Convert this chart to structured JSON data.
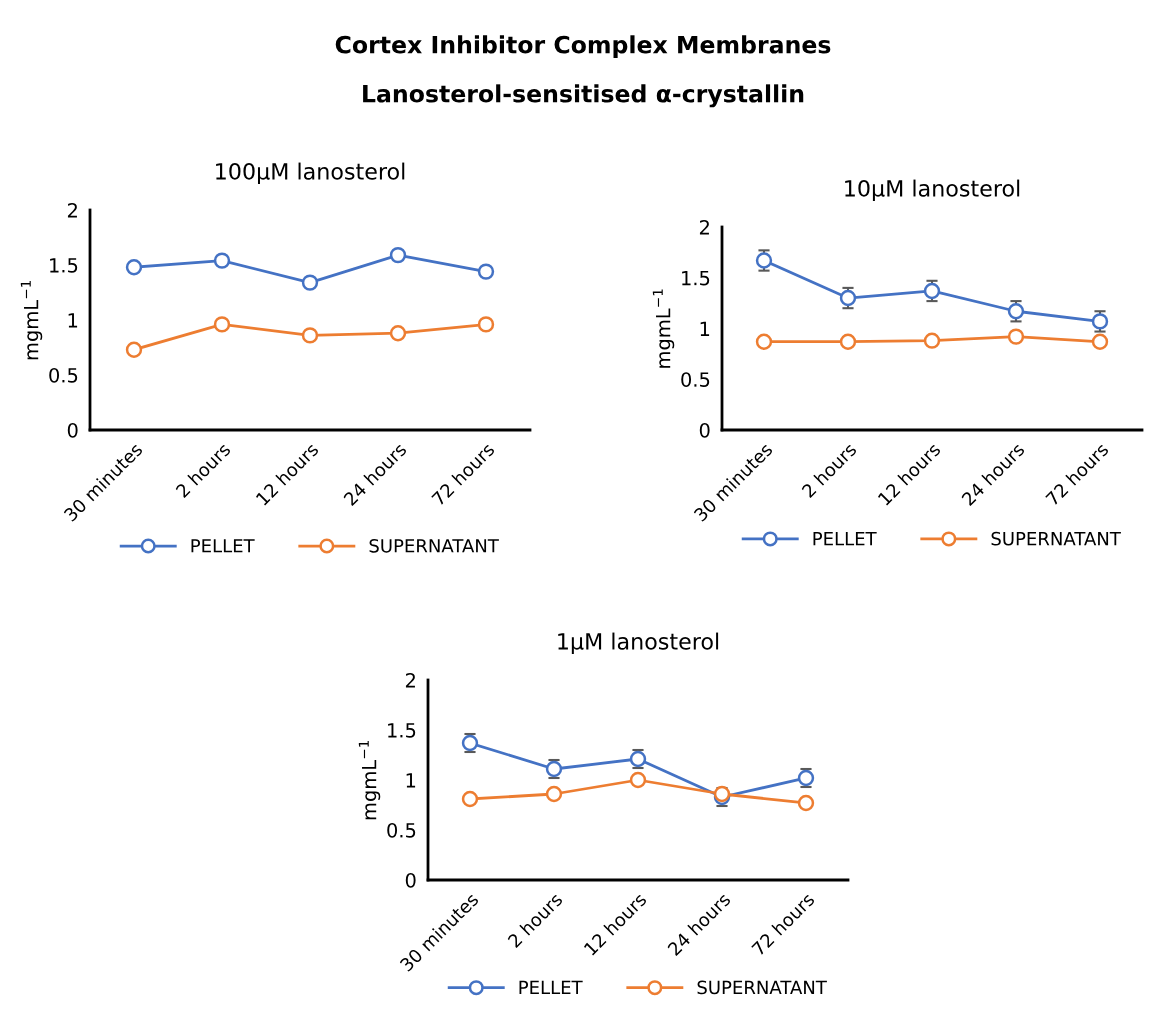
{
  "chart_data": [
    {
      "type": "other",
      "title": "Cortex Inhibitor Complex Membranes",
      "subtitle": "Lanosterol-sensitised α-crystallin"
    },
    {
      "type": "line",
      "title": "100µM lanosterol",
      "ylabel": "mgmL$^{−1}$",
      "categories": [
        "30 minutes",
        "2 hours",
        "12 hours",
        "24 hours",
        "72 hours"
      ],
      "ylim": [
        0,
        2
      ],
      "yticks": [
        0,
        0.5,
        1,
        1.5,
        2
      ],
      "grid": false,
      "legend": "bottom",
      "marker": "circle",
      "series": [
        {
          "name": "PELLET",
          "color": "#4472c4",
          "values": [
            1.48,
            1.54,
            1.34,
            1.59,
            1.44
          ]
        },
        {
          "name": "SUPERNATANT",
          "color": "#ed7d31",
          "values": [
            0.73,
            0.96,
            0.86,
            0.88,
            0.96
          ]
        }
      ]
    },
    {
      "type": "line",
      "title": "10µM lanosterol",
      "ylabel": "mgmL$^{−1}$",
      "categories": [
        "30 minutes",
        "2 hours",
        "12 hours",
        "24 hours",
        "72 hours"
      ],
      "ylim": [
        0,
        2
      ],
      "yticks": [
        0,
        0.5,
        1,
        1.5,
        2
      ],
      "grid": false,
      "legend": "bottom",
      "marker": "circle",
      "series": [
        {
          "name": "PELLET",
          "color": "#4472c4",
          "values": [
            1.67,
            1.3,
            1.37,
            1.17,
            1.07
          ],
          "errors": [
            0.1,
            0.1,
            0.1,
            0.1,
            0.1
          ]
        },
        {
          "name": "SUPERNATANT",
          "color": "#ed7d31",
          "values": [
            0.87,
            0.87,
            0.88,
            0.92,
            0.87
          ]
        }
      ]
    },
    {
      "type": "line",
      "title": "1µM lanosterol",
      "ylabel": "mgmL$^{−1}$",
      "categories": [
        "30 minutes",
        "2 hours",
        "12 hours",
        "24 hours",
        "72 hours"
      ],
      "ylim": [
        0,
        2
      ],
      "yticks": [
        0,
        0.5,
        1,
        1.5,
        2
      ],
      "grid": false,
      "legend": "bottom",
      "marker": "circle",
      "series": [
        {
          "name": "PELLET",
          "color": "#4472c4",
          "values": [
            1.37,
            1.11,
            1.21,
            0.83,
            1.02
          ],
          "errors": [
            0.09,
            0.09,
            0.09,
            0.09,
            0.09
          ]
        },
        {
          "name": "SUPERNATANT",
          "color": "#ed7d31",
          "values": [
            0.81,
            0.86,
            1.0,
            0.86,
            0.77
          ]
        }
      ]
    }
  ]
}
